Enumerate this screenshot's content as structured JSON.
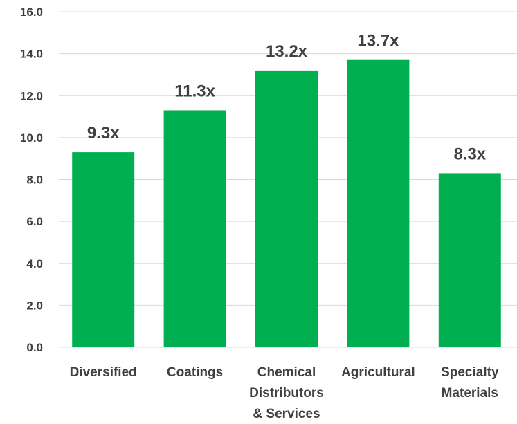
{
  "chart_data": {
    "type": "bar",
    "title": "",
    "xlabel": "",
    "ylabel": "",
    "categories": [
      [
        "Diversified"
      ],
      [
        "Coatings"
      ],
      [
        "Chemical",
        "Distributors",
        "& Services"
      ],
      [
        "Agricultural"
      ],
      [
        "Specialty",
        "Materials"
      ]
    ],
    "values": [
      9.3,
      11.3,
      13.2,
      13.7,
      8.3
    ],
    "data_labels": [
      "9.3x",
      "11.3x",
      "13.2x",
      "13.7x",
      "8.3x"
    ],
    "ylim": [
      0,
      16
    ],
    "y_ticks": [
      "0.0",
      "2.0",
      "4.0",
      "6.0",
      "8.0",
      "10.0",
      "12.0",
      "14.0",
      "16.0"
    ],
    "grid": true,
    "legend": "none",
    "bar_color": "#00b050"
  }
}
